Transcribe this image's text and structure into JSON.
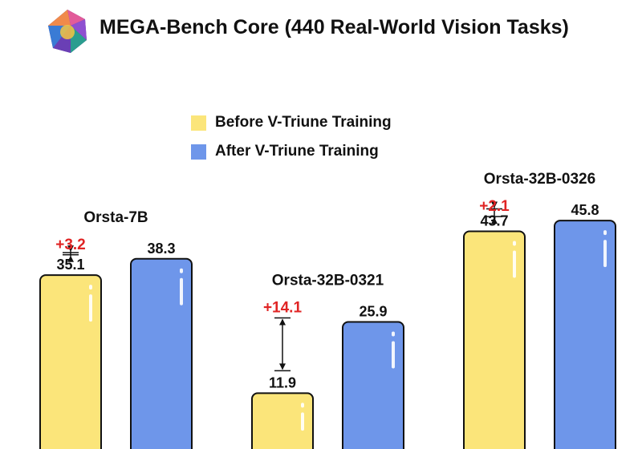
{
  "title": "MEGA-Bench Core (440 Real-World Vision Tasks)",
  "logo_icon": "gem-icon",
  "colors": {
    "before": "#fbe57a",
    "after": "#6e96ea",
    "gain": "#e02424",
    "outline": "#111111"
  },
  "legend": [
    {
      "label": "Before V-Triune Training",
      "color": "#fbe57a"
    },
    {
      "label": "After V-Triune Training",
      "color": "#6e96ea"
    }
  ],
  "chart_data": {
    "type": "bar",
    "title": "MEGA-Bench Core (440 Real-World Vision Tasks)",
    "xlabel": "",
    "ylabel": "",
    "grid": false,
    "legend_position": "top-center",
    "categories": [
      "Orsta-7B",
      "Orsta-32B-0321",
      "Orsta-32B-0326"
    ],
    "series": [
      {
        "name": "Before V-Triune Training",
        "values": [
          35.1,
          11.9,
          43.7
        ]
      },
      {
        "name": "After V-Triune Training",
        "values": [
          38.3,
          25.9,
          45.8
        ]
      }
    ],
    "gains": [
      "+3.2",
      "+14.1",
      "+2.1"
    ],
    "value_labels": [
      [
        "35.1",
        "38.3"
      ],
      [
        "11.9",
        "25.9"
      ],
      [
        "43.7",
        "45.8"
      ]
    ]
  }
}
